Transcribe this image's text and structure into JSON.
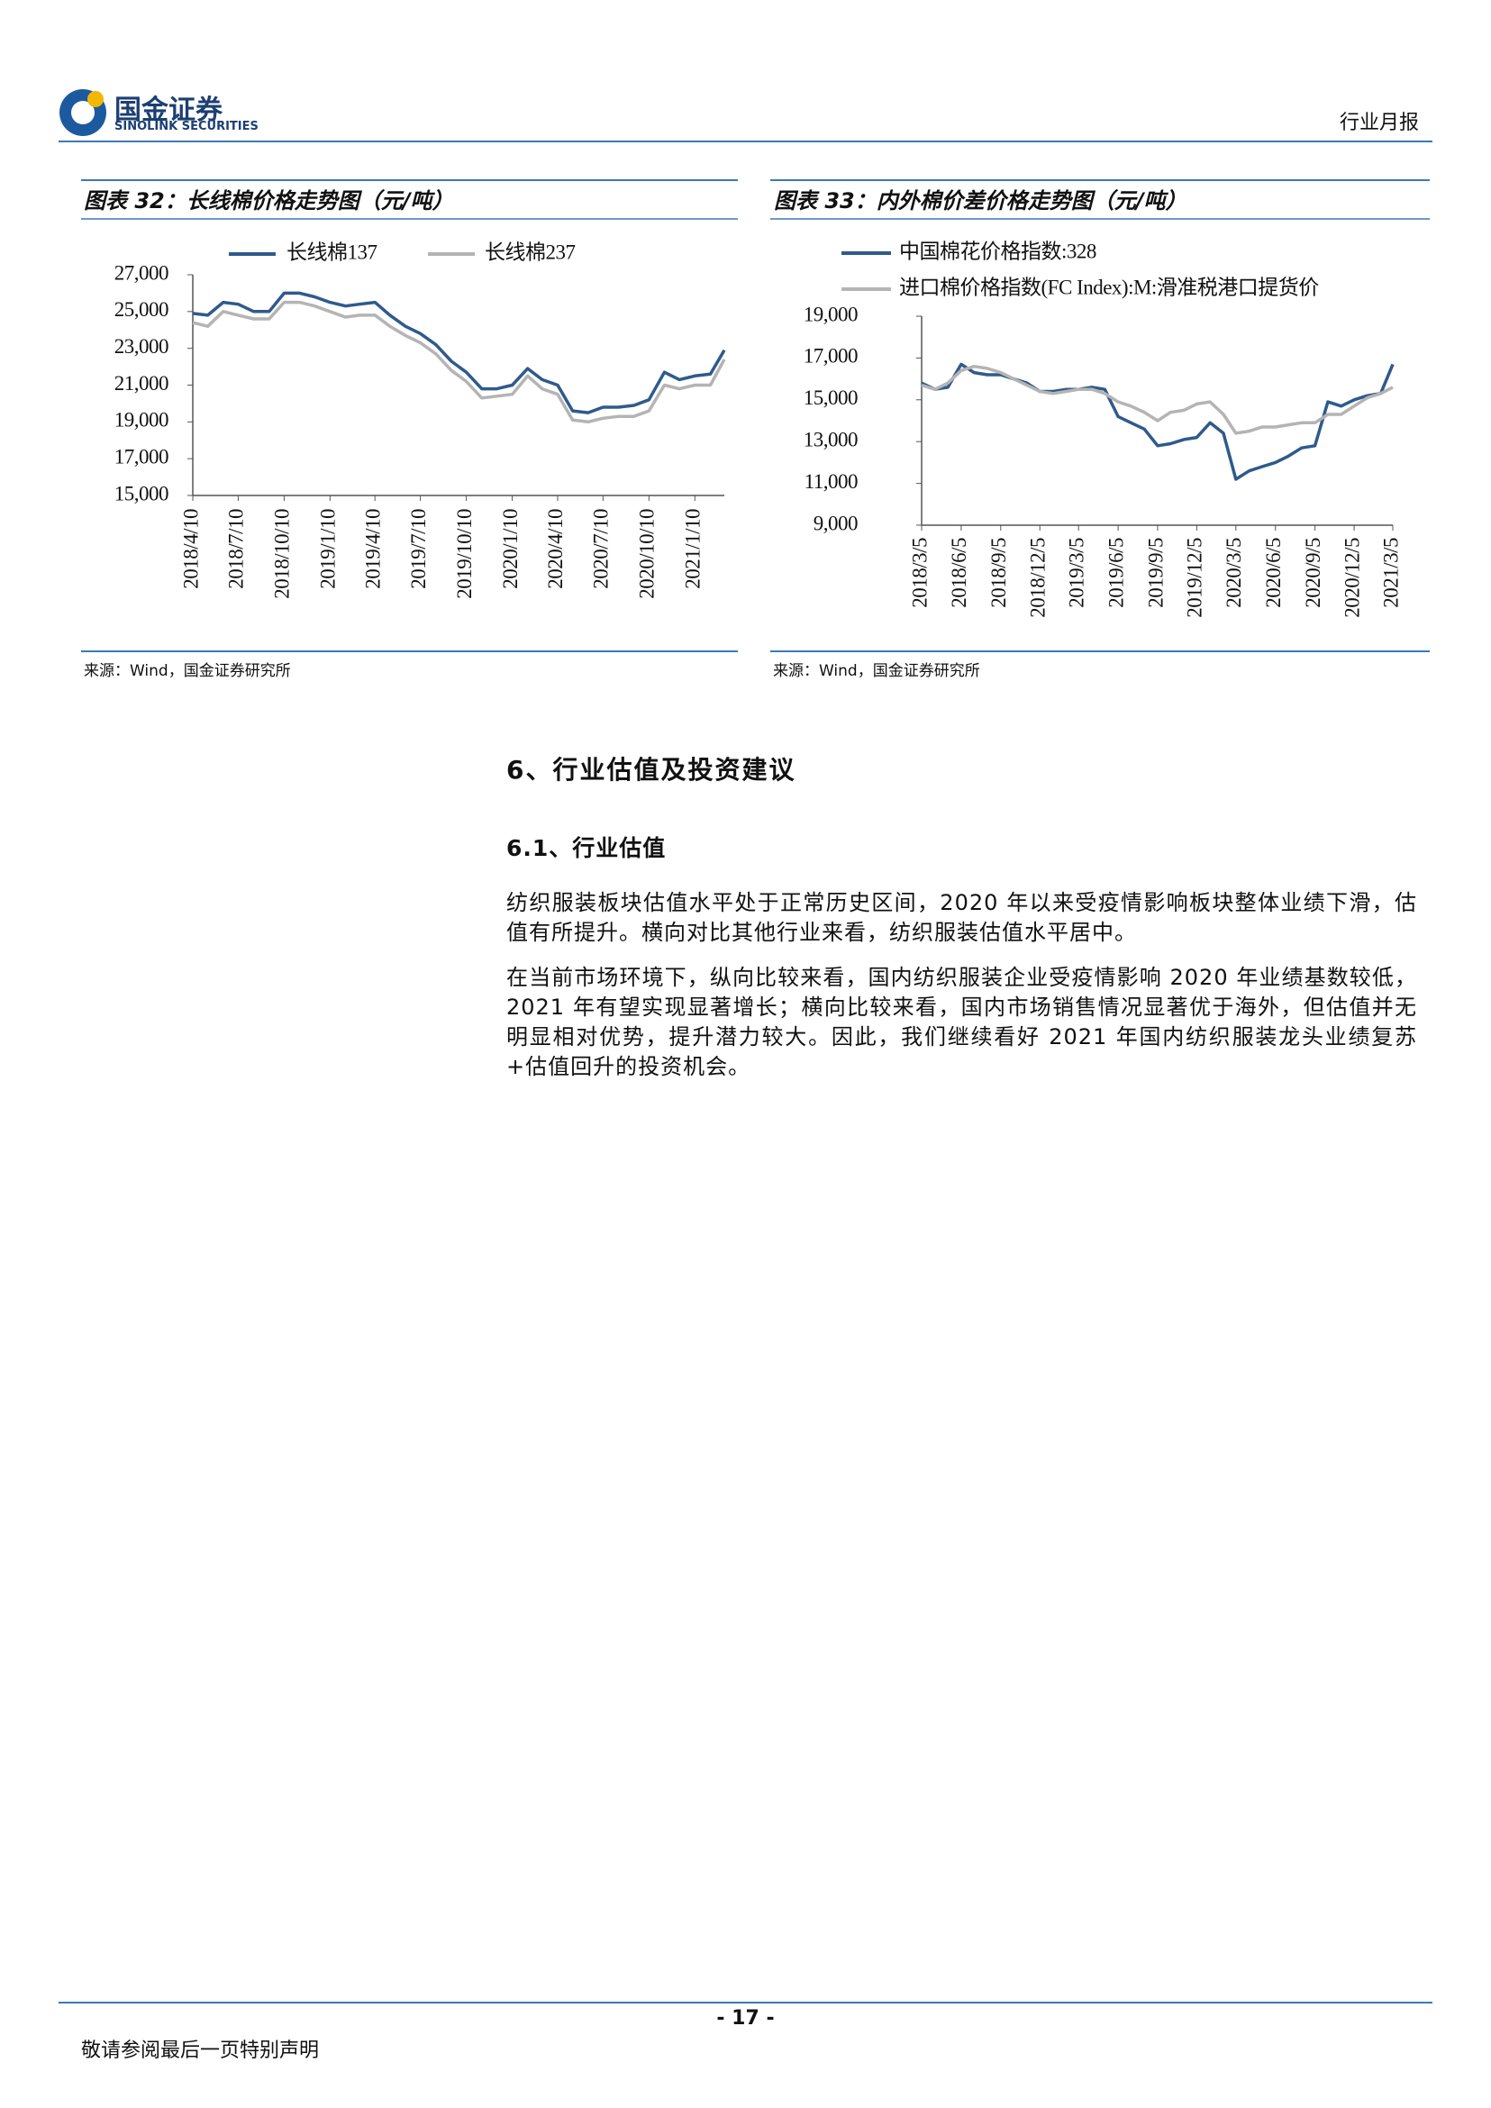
{
  "header": {
    "brand": "国金证券",
    "brand_en": "SINOLINK SECURITIES",
    "report_type": "行业月报"
  },
  "chart_data": [
    {
      "type": "line",
      "title": "图表 32：长线棉价格走势图（元/吨）",
      "x": [
        "2018/4/10",
        "2018/5/10",
        "2018/6/10",
        "2018/7/10",
        "2018/8/10",
        "2018/9/10",
        "2018/10/10",
        "2018/11/10",
        "2018/12/10",
        "2019/1/10",
        "2019/2/10",
        "2019/3/10",
        "2019/4/10",
        "2019/5/10",
        "2019/6/10",
        "2019/7/10",
        "2019/8/10",
        "2019/9/10",
        "2019/10/10",
        "2019/11/10",
        "2019/12/10",
        "2020/1/10",
        "2020/2/10",
        "2020/3/10",
        "2020/4/10",
        "2020/5/10",
        "2020/6/10",
        "2020/7/10",
        "2020/8/10",
        "2020/9/10",
        "2020/10/10",
        "2020/11/10",
        "2020/12/10",
        "2021/1/10",
        "2021/2/10",
        "2021/3/10"
      ],
      "series": [
        {
          "name": "长线棉137",
          "color": "#2f5a8c",
          "values": [
            24900,
            24800,
            25500,
            25400,
            25000,
            25000,
            26000,
            26000,
            25800,
            25500,
            25300,
            25400,
            25500,
            24800,
            24200,
            23800,
            23200,
            22300,
            21700,
            20800,
            20800,
            21000,
            21900,
            21300,
            21000,
            19600,
            19500,
            19800,
            19800,
            19900,
            20200,
            21700,
            21300,
            21500,
            21600,
            22900
          ]
        },
        {
          "name": "长线棉237",
          "color": "#b4b4b4",
          "values": [
            24400,
            24200,
            25000,
            24800,
            24600,
            24600,
            25500,
            25500,
            25300,
            25000,
            24700,
            24800,
            24800,
            24200,
            23700,
            23300,
            22700,
            21800,
            21200,
            20300,
            20400,
            20500,
            21500,
            20800,
            20500,
            19100,
            19000,
            19200,
            19300,
            19300,
            19600,
            21000,
            20800,
            21000,
            21000,
            22400
          ]
        }
      ],
      "ylim": [
        15000,
        27000
      ],
      "yticks": [
        {
          "value": 15000,
          "label": "15,000"
        },
        {
          "value": 17000,
          "label": "17,000"
        },
        {
          "value": 19000,
          "label": "19,000"
        },
        {
          "value": 21000,
          "label": "21,000"
        },
        {
          "value": 23000,
          "label": "23,000"
        },
        {
          "value": 25000,
          "label": "25,000"
        },
        {
          "value": 27000,
          "label": "27,000"
        }
      ],
      "xticks": [
        "2018/4/10",
        "2018/7/10",
        "2018/10/10",
        "2019/1/10",
        "2019/4/10",
        "2019/7/10",
        "2019/10/10",
        "2020/1/10",
        "2020/4/10",
        "2020/7/10",
        "2020/10/10",
        "2021/1/10"
      ],
      "legend": "top-row",
      "source": "来源：Wind，国金证券研究所"
    },
    {
      "type": "line",
      "title": "图表 33：内外棉价差价格走势图（元/吨）",
      "x": [
        "2018/3/5",
        "2018/4/5",
        "2018/5/5",
        "2018/6/5",
        "2018/7/5",
        "2018/8/5",
        "2018/9/5",
        "2018/10/5",
        "2018/11/5",
        "2018/12/5",
        "2019/1/5",
        "2019/2/5",
        "2019/3/5",
        "2019/4/5",
        "2019/5/5",
        "2019/6/5",
        "2019/7/5",
        "2019/8/5",
        "2019/9/5",
        "2019/10/5",
        "2019/11/5",
        "2019/12/5",
        "2020/1/5",
        "2020/2/5",
        "2020/3/5",
        "2020/4/5",
        "2020/5/5",
        "2020/6/5",
        "2020/7/5",
        "2020/8/5",
        "2020/9/5",
        "2020/10/5",
        "2020/11/5",
        "2020/12/5",
        "2021/1/5",
        "2021/2/5",
        "2021/3/5"
      ],
      "series": [
        {
          "name": "中国棉花价格指数:328",
          "color": "#2f5a8c",
          "values": [
            15800,
            15500,
            15600,
            16700,
            16300,
            16200,
            16200,
            16000,
            15800,
            15400,
            15400,
            15500,
            15500,
            15600,
            15500,
            14200,
            13900,
            13600,
            12800,
            12900,
            13100,
            13200,
            13900,
            13400,
            11200,
            11600,
            11800,
            12000,
            12300,
            12700,
            12800,
            14900,
            14700,
            15000,
            15200,
            15300,
            16700
          ]
        },
        {
          "name": "进口棉价格指数(FC Index):M:滑准税港口提货价",
          "color": "#b4b4b4",
          "values": [
            15700,
            15500,
            15800,
            16400,
            16600,
            16500,
            16300,
            16000,
            15700,
            15400,
            15300,
            15400,
            15500,
            15500,
            15300,
            14900,
            14700,
            14400,
            14000,
            14400,
            14500,
            14800,
            14900,
            14300,
            13400,
            13500,
            13700,
            13700,
            13800,
            13900,
            13900,
            14300,
            14300,
            14700,
            15100,
            15300,
            15600
          ]
        }
      ],
      "ylim": [
        9000,
        19000
      ],
      "yticks": [
        {
          "value": 9000,
          "label": "9,000"
        },
        {
          "value": 11000,
          "label": "11,000"
        },
        {
          "value": 13000,
          "label": "13,000"
        },
        {
          "value": 15000,
          "label": "15,000"
        },
        {
          "value": 17000,
          "label": "17,000"
        },
        {
          "value": 19000,
          "label": "19,000"
        }
      ],
      "xticks": [
        "2018/3/5",
        "2018/6/5",
        "2018/9/5",
        "2018/12/5",
        "2019/3/5",
        "2019/6/5",
        "2019/9/5",
        "2019/12/5",
        "2020/3/5",
        "2020/6/5",
        "2020/9/5",
        "2020/12/5",
        "2021/3/5"
      ],
      "legend": "top-column",
      "source": "来源：Wind，国金证券研究所"
    }
  ],
  "body": {
    "section_title": "6、行业估值及投资建议",
    "subsection_title": "6.1、行业估值",
    "paragraphs": [
      "纺织服装板块估值水平处于正常历史区间，2020 年以来受疫情影响板块整体业绩下滑，估值有所提升。横向对比其他行业来看，纺织服装估值水平居中。",
      "在当前市场环境下，纵向比较来看，国内纺织服装企业受疫情影响 2020 年业绩基数较低，2021 年有望实现显著增长；横向比较来看，国内市场销售情况显著优于海外，但估值并无明显相对优势，提升潜力较大。因此，我们继续看好 2021 年国内纺织服装龙头业绩复苏+估值回升的投资机会。"
    ]
  },
  "footer": {
    "page": "- 17 -",
    "disclaimer": "敬请参阅最后一页特别声明"
  }
}
